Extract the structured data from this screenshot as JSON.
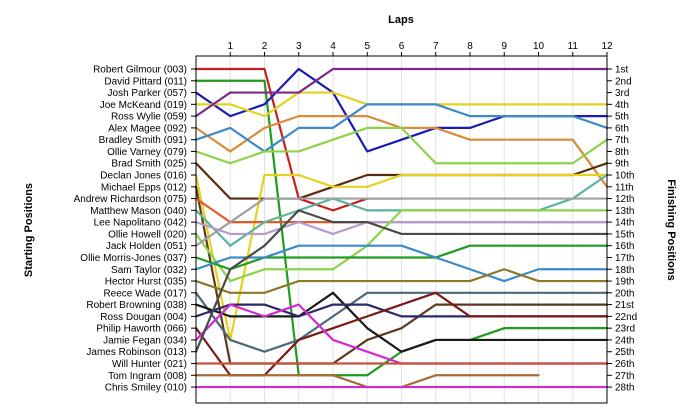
{
  "chart_data": {
    "type": "line",
    "title": "Laps",
    "xlabel": "Laps",
    "ylabel_left": "Starting Positions",
    "ylabel_right": "Finishing Positions",
    "x_ticks": [
      "1",
      "2",
      "3",
      "4",
      "5",
      "6",
      "7",
      "8",
      "9",
      "10",
      "11",
      "12"
    ],
    "drivers": [
      "Robert Gilmour (003)",
      "David Pittard (011)",
      "Josh Parker (057)",
      "Joe McKeand (019)",
      "Ross Wylie (059)",
      "Alex Magee (092)",
      "Bradley Smith (091)",
      "Ollie Varney (079)",
      "Brad Smith (025)",
      "Declan Jones (016)",
      "Michael Epps (012)",
      "Andrew Richardson (075)",
      "Matthew Mason (040)",
      "Lee Napolitano (042)",
      "Ollie Howell (020)",
      "Jack Holden (051)",
      "Ollie Morris-Jones (037)",
      "Sam Taylor (032)",
      "Hector Hurst (035)",
      "Reece Wade (017)",
      "Robert Browning (038)",
      "Ross Dougan (004)",
      "Philip Haworth (066)",
      "Jamie Fegan (034)",
      "James Robinson (013)",
      "Will Hunter (021)",
      "Tom Ingram (008)",
      "Chris Smiley (010)"
    ],
    "finish_labels": [
      "1st",
      "2nd",
      "3rd",
      "4th",
      "5th",
      "6th",
      "7th",
      "8th",
      "9th",
      "10th",
      "11th",
      "12th",
      "13th",
      "14th",
      "15th",
      "16th",
      "17th",
      "18th",
      "19th",
      "20th",
      "21st",
      "22nd",
      "23rd",
      "24th",
      "25th",
      "26th",
      "27th",
      "28th"
    ],
    "series": [
      {
        "color": "#c81e1e",
        "positions": [
          1,
          1,
          1,
          12,
          13,
          12,
          12
        ]
      },
      {
        "color": "#1f9b1f",
        "positions": [
          2,
          2,
          2,
          27,
          27,
          27,
          25,
          24,
          24,
          23,
          23,
          23,
          23
        ]
      },
      {
        "color": "#1a1ab4",
        "positions": [
          3,
          5,
          4,
          1,
          3,
          8,
          7,
          6,
          6,
          5,
          5,
          5,
          5
        ]
      },
      {
        "color": "#e6d21e",
        "positions": [
          4,
          4,
          5,
          3,
          3,
          4,
          4,
          4,
          4,
          4,
          4,
          4,
          4
        ]
      },
      {
        "color": "#7a2a8a",
        "positions": [
          5,
          3,
          3,
          3,
          1,
          1,
          1,
          1,
          1,
          1,
          1,
          1,
          1
        ]
      },
      {
        "color": "#d98c3c",
        "positions": [
          6,
          8,
          6,
          5,
          5,
          5,
          6,
          6,
          7,
          7,
          7,
          7,
          11
        ]
      },
      {
        "color": "#3c8ac8",
        "positions": [
          7,
          6,
          8,
          6,
          6,
          4,
          4,
          4,
          5,
          5,
          5,
          5,
          6
        ]
      },
      {
        "color": "#8cd24a",
        "positions": [
          8,
          9,
          8,
          8,
          7,
          6,
          6,
          9,
          9,
          9,
          9,
          9,
          7
        ]
      },
      {
        "color": "#5a2a10",
        "positions": [
          9,
          12,
          12,
          12,
          11,
          10,
          10,
          10,
          10,
          10,
          10,
          10,
          9
        ]
      },
      {
        "color": "#e6d21e",
        "positions": [
          10,
          24,
          10,
          10,
          11,
          11,
          10,
          10,
          10,
          10,
          10,
          10,
          10
        ]
      },
      {
        "color": "#5c3a20",
        "positions": [
          11,
          26,
          26,
          26,
          26,
          24,
          23,
          21,
          21,
          21,
          21,
          21,
          21
        ]
      },
      {
        "color": "#e65a2a",
        "positions": [
          12,
          14,
          14,
          14,
          14,
          14,
          14,
          14,
          14,
          14,
          14,
          14,
          14
        ]
      },
      {
        "color": "#5ab4a0",
        "positions": [
          13,
          16,
          14,
          13,
          12,
          13,
          13,
          13,
          13,
          13,
          13,
          12,
          10
        ]
      },
      {
        "color": "#b49cd2",
        "positions": [
          14,
          15,
          15,
          14,
          15,
          14,
          14,
          14,
          14,
          14,
          14,
          14,
          14
        ]
      },
      {
        "color": "#8cd24a",
        "positions": [
          15,
          19,
          18,
          18,
          18,
          16,
          13,
          13,
          13,
          13,
          13,
          13,
          13
        ]
      },
      {
        "color": "#a0a0a0",
        "positions": [
          16,
          14,
          12,
          12,
          12,
          12,
          12,
          12,
          12,
          12,
          12,
          12,
          12
        ]
      },
      {
        "color": "#1f9b1f",
        "positions": [
          17,
          18,
          17,
          17,
          17,
          17,
          17,
          17,
          16,
          16,
          16,
          16,
          16
        ]
      },
      {
        "color": "#3c8ac8",
        "positions": [
          18,
          17,
          17,
          16,
          16,
          16,
          16,
          17,
          18,
          19,
          18,
          18,
          18
        ]
      },
      {
        "color": "#8a7a2a",
        "positions": [
          19,
          20,
          20,
          19,
          19,
          19,
          19,
          19,
          19,
          18,
          19,
          19,
          19
        ]
      },
      {
        "color": "#4a6a7a",
        "positions": [
          20,
          24,
          25,
          24,
          22,
          20,
          20,
          20,
          20,
          20,
          20,
          20,
          20
        ]
      },
      {
        "color": "#1a1a1a",
        "positions": [
          21,
          22,
          22,
          22,
          20,
          23,
          25,
          24,
          24,
          24,
          24,
          24,
          24
        ]
      },
      {
        "color": "#2a2a6a",
        "positions": [
          22,
          21,
          21,
          22,
          21,
          21,
          22,
          22,
          22,
          22,
          22,
          22,
          22
        ]
      },
      {
        "color": "#7a1a1a",
        "positions": [
          23,
          27,
          27,
          24,
          23,
          22,
          21,
          20,
          22,
          22,
          22,
          22,
          22
        ]
      },
      {
        "color": "#d22ad2",
        "positions": [
          24,
          21,
          22,
          21,
          24,
          25,
          26,
          26,
          26,
          26,
          26,
          26,
          26
        ]
      },
      {
        "color": "#4a4a4a",
        "positions": [
          25,
          18,
          16,
          13,
          14,
          14,
          15,
          15,
          15,
          15,
          15,
          15,
          15
        ]
      },
      {
        "color": "#c8503a",
        "positions": [
          26,
          26,
          26,
          26,
          26,
          26,
          26,
          26,
          26,
          26,
          26,
          26,
          26
        ]
      },
      {
        "color": "#a86a3a",
        "positions": [
          27,
          27,
          27,
          27,
          27,
          28,
          28,
          27,
          27,
          27,
          27
        ]
      },
      {
        "color": "#d22ad2",
        "positions": [
          28,
          28,
          28,
          28,
          28,
          28,
          28,
          28,
          28,
          28,
          28,
          28,
          28
        ]
      }
    ]
  }
}
